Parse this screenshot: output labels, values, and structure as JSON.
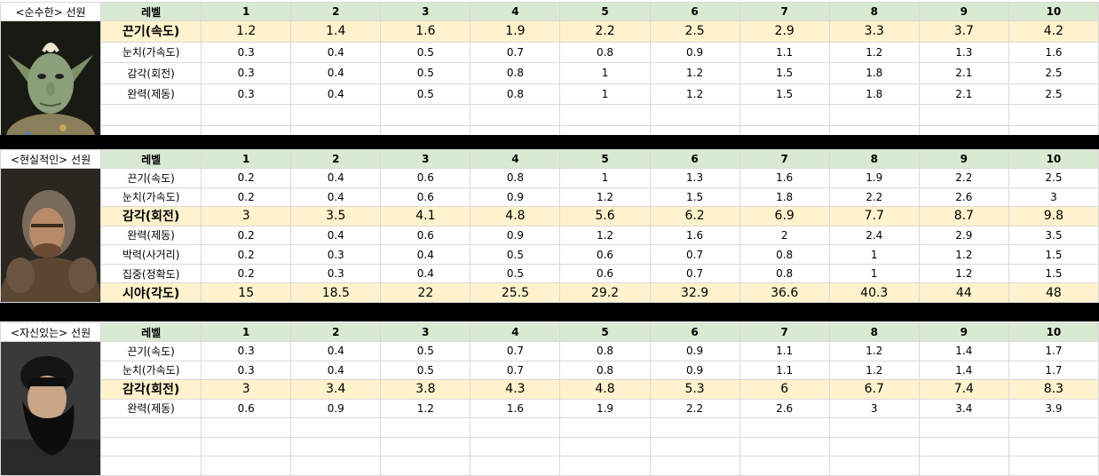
{
  "columns": [
    "1",
    "2",
    "3",
    "4",
    "5",
    "6",
    "7",
    "8",
    "9",
    "10"
  ],
  "level_label": "레벨",
  "sections": [
    {
      "title": "<순수한> 선원",
      "portrait": "goblin-sailor-portrait",
      "highlight": [
        0
      ],
      "rows": [
        {
          "stat": "끈기(속도)",
          "values": [
            "1.2",
            "1.4",
            "1.6",
            "1.9",
            "2.2",
            "2.5",
            "2.9",
            "3.3",
            "3.7",
            "4.2"
          ]
        },
        {
          "stat": "눈치(가속도)",
          "values": [
            "0.3",
            "0.4",
            "0.5",
            "0.7",
            "0.8",
            "0.9",
            "1.1",
            "1.2",
            "1.3",
            "1.6"
          ]
        },
        {
          "stat": "감각(회전)",
          "values": [
            "0.3",
            "0.4",
            "0.5",
            "0.8",
            "1",
            "1.2",
            "1.5",
            "1.8",
            "2.1",
            "2.5"
          ]
        },
        {
          "stat": "완력(제동)",
          "values": [
            "0.3",
            "0.4",
            "0.5",
            "0.8",
            "1",
            "1.2",
            "1.5",
            "1.8",
            "2.1",
            "2.5"
          ]
        }
      ]
    },
    {
      "title": "<현실적인> 선원",
      "portrait": "bearded-hooded-sailor-portrait",
      "highlight": [
        2,
        6
      ],
      "rows": [
        {
          "stat": "끈기(속도)",
          "values": [
            "0.2",
            "0.4",
            "0.6",
            "0.8",
            "1",
            "1.3",
            "1.6",
            "1.9",
            "2.2",
            "2.5"
          ]
        },
        {
          "stat": "눈치(가속도)",
          "values": [
            "0.2",
            "0.4",
            "0.6",
            "0.9",
            "1.2",
            "1.5",
            "1.8",
            "2.2",
            "2.6",
            "3"
          ]
        },
        {
          "stat": "감각(회전)",
          "values": [
            "3",
            "3.5",
            "4.1",
            "4.8",
            "5.6",
            "6.2",
            "6.9",
            "7.7",
            "8.7",
            "9.8"
          ]
        },
        {
          "stat": "완력(제동)",
          "values": [
            "0.2",
            "0.4",
            "0.6",
            "0.9",
            "1.2",
            "1.6",
            "2",
            "2.4",
            "2.9",
            "3.5"
          ]
        },
        {
          "stat": "박력(사거리)",
          "values": [
            "0.2",
            "0.3",
            "0.4",
            "0.5",
            "0.6",
            "0.7",
            "0.8",
            "1",
            "1.2",
            "1.5"
          ]
        },
        {
          "stat": "집중(정확도)",
          "values": [
            "0.2",
            "0.3",
            "0.4",
            "0.5",
            "0.6",
            "0.7",
            "0.8",
            "1",
            "1.2",
            "1.5"
          ]
        },
        {
          "stat": "시야(각도)",
          "values": [
            "15",
            "18.5",
            "22",
            "25.5",
            "29.2",
            "32.9",
            "36.6",
            "40.3",
            "44",
            "48"
          ]
        }
      ]
    },
    {
      "title": "<자신있는> 선원",
      "portrait": "black-bearded-sailor-portrait",
      "highlight": [
        2
      ],
      "rows": [
        {
          "stat": "끈기(속도)",
          "values": [
            "0.3",
            "0.4",
            "0.5",
            "0.7",
            "0.8",
            "0.9",
            "1.1",
            "1.2",
            "1.4",
            "1.7"
          ]
        },
        {
          "stat": "눈치(가속도)",
          "values": [
            "0.3",
            "0.4",
            "0.5",
            "0.7",
            "0.8",
            "0.9",
            "1.1",
            "1.2",
            "1.4",
            "1.7"
          ]
        },
        {
          "stat": "감각(회전)",
          "values": [
            "3",
            "3.4",
            "3.8",
            "4.3",
            "4.8",
            "5.3",
            "6",
            "6.7",
            "7.4",
            "8.3"
          ]
        },
        {
          "stat": "완력(제동)",
          "values": [
            "0.6",
            "0.9",
            "1.2",
            "1.6",
            "1.9",
            "2.2",
            "2.6",
            "3",
            "3.4",
            "3.9"
          ]
        }
      ]
    }
  ]
}
